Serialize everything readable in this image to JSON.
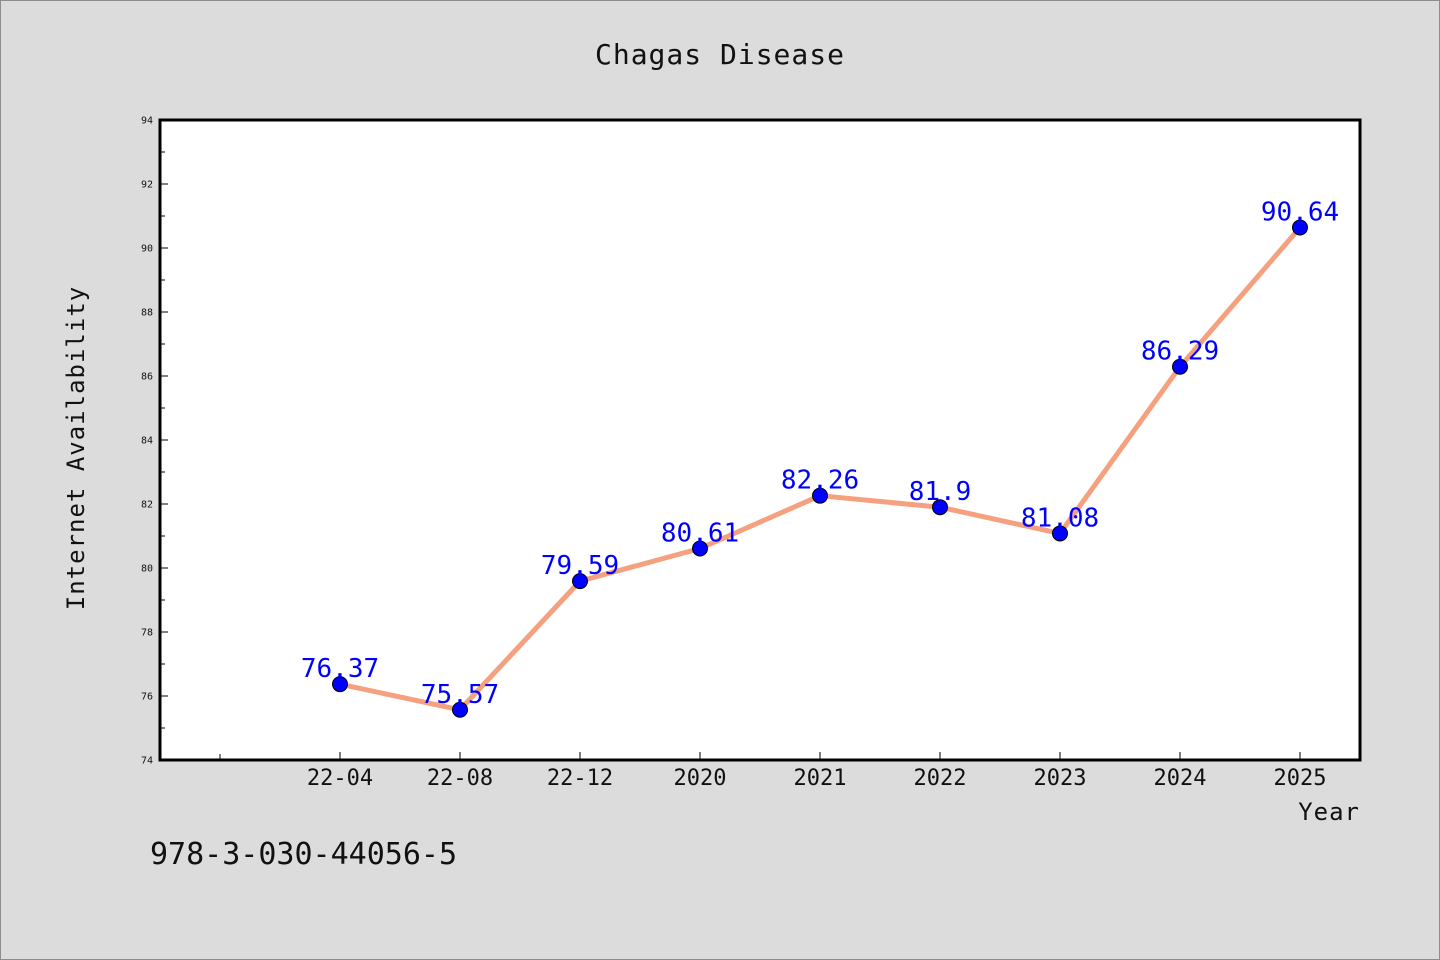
{
  "chart_data": {
    "type": "line",
    "title": "Chagas Disease",
    "xlabel": "Year",
    "ylabel": "Internet Availability",
    "categories": [
      "22-04",
      "22-08",
      "22-12",
      "2020",
      "2021",
      "2022",
      "2023",
      "2024",
      "2025"
    ],
    "series": [
      {
        "values": [
          76.37,
          75.57,
          79.59,
          80.61,
          82.26,
          81.9,
          81.08,
          86.29,
          90.64
        ]
      }
    ],
    "data_labels": [
      "76.37",
      "75.57",
      "79.59",
      "80.61",
      "82.26",
      "81.9",
      "81.08",
      "86.29",
      "90.64"
    ],
    "ylim": [
      74,
      94
    ],
    "y_ticks": [
      74,
      76,
      78,
      80,
      82,
      84,
      86,
      88,
      90,
      92,
      94
    ],
    "grid": false,
    "colors": {
      "line": "#f5a07e",
      "marker": "#0000ff",
      "data_label": "#0000ff",
      "background": "#dcdcdc",
      "plot_area": "#ffffff"
    }
  },
  "footer": {
    "text": "978-3-030-44056-5"
  }
}
